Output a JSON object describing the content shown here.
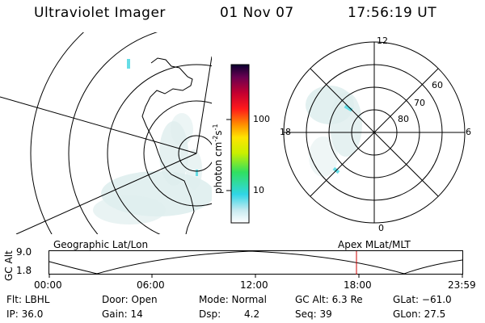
{
  "header": {
    "title": "Ultraviolet Imager",
    "date": "01 Nov 07",
    "time": "17:56:19 UT"
  },
  "colorbar": {
    "unit": "photon cm",
    "exp1": "-2",
    "mid": "s",
    "exp2": "-1",
    "ticks": [
      "100",
      "10"
    ]
  },
  "polar_plot": {
    "mlt_labels": [
      "12",
      "18",
      "6",
      "0"
    ],
    "lat_labels": [
      "60",
      "70",
      "80"
    ]
  },
  "altitude_panel": {
    "left_title": "Geographic Lat/Lon",
    "right_title": "Apex MLat/MLT",
    "axis_label": "GC Alt",
    "y_ticks": [
      "9.0",
      "1.8"
    ],
    "x_ticks": [
      "00:00",
      "06:00",
      "12:00",
      "18:00",
      "23:59"
    ]
  },
  "status": {
    "row1": {
      "flt": "Flt: LBHL",
      "door": "Door: Open",
      "mode": "Mode: Normal",
      "gcalt": "GC Alt: 6.3 Re",
      "glat": "GLat: −61.0"
    },
    "row2": {
      "ip": "IP: 36.0",
      "gain": "Gain: 14",
      "dsp_label": "Dsp:",
      "dsp_value": "4.2",
      "seq": "Seq: 39",
      "glon": "GLon: 27.5"
    }
  },
  "colors": {
    "current_time_marker": "#cc0000",
    "aurora_faint": "#dfeeee",
    "aurora_bright": "#66dde6"
  }
}
